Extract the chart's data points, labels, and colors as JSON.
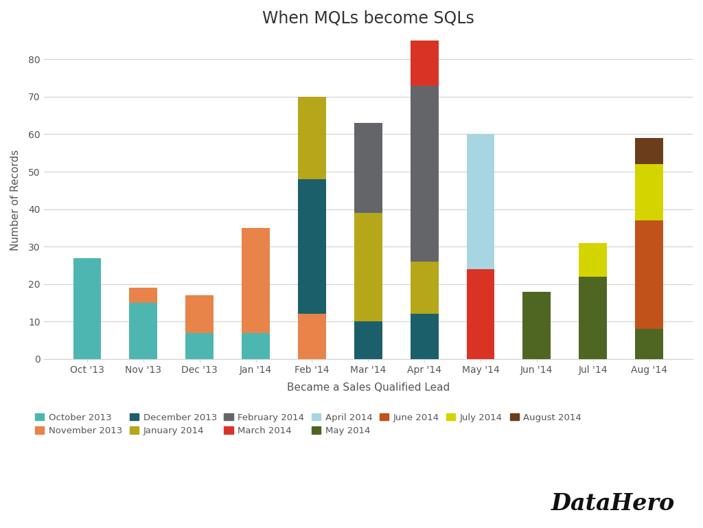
{
  "title": "When MQLs become SQLs",
  "xlabel": "Became a Sales Qualified Lead",
  "ylabel": "Number of Records",
  "background_color": "#ffffff",
  "categories": [
    "Oct '13",
    "Nov '13",
    "Dec '13",
    "Jan '14",
    "Feb '14",
    "Mar '14",
    "Apr '14",
    "May '14",
    "Jun '14",
    "Jul '14",
    "Aug '14"
  ],
  "series": [
    {
      "name": "October 2013",
      "color": "#4db6b0",
      "values": [
        27,
        15,
        7,
        7,
        0,
        0,
        0,
        0,
        0,
        0,
        0
      ]
    },
    {
      "name": "November 2013",
      "color": "#e8834a",
      "values": [
        0,
        4,
        10,
        28,
        12,
        0,
        0,
        0,
        0,
        0,
        0
      ]
    },
    {
      "name": "December 2013",
      "color": "#1b5f6b",
      "values": [
        0,
        0,
        0,
        0,
        36,
        10,
        12,
        0,
        0,
        0,
        0
      ]
    },
    {
      "name": "January 2014",
      "color": "#b5a61a",
      "values": [
        0,
        0,
        0,
        0,
        22,
        29,
        14,
        0,
        0,
        0,
        0
      ]
    },
    {
      "name": "February 2014",
      "color": "#636569",
      "values": [
        0,
        0,
        0,
        0,
        0,
        24,
        47,
        0,
        0,
        0,
        0
      ]
    },
    {
      "name": "March 2014",
      "color": "#d93326",
      "values": [
        0,
        0,
        0,
        0,
        0,
        0,
        15,
        24,
        0,
        0,
        0
      ]
    },
    {
      "name": "April 2014",
      "color": "#a8d5e2",
      "values": [
        0,
        0,
        0,
        0,
        0,
        0,
        0,
        36,
        0,
        0,
        0
      ]
    },
    {
      "name": "May 2014",
      "color": "#4e6622",
      "values": [
        0,
        0,
        0,
        0,
        0,
        0,
        0,
        0,
        18,
        22,
        8
      ]
    },
    {
      "name": "June 2014",
      "color": "#c0521a",
      "values": [
        0,
        0,
        0,
        0,
        0,
        0,
        0,
        0,
        0,
        0,
        29
      ]
    },
    {
      "name": "July 2014",
      "color": "#d4d400",
      "values": [
        0,
        0,
        0,
        0,
        0,
        0,
        0,
        0,
        0,
        9,
        15
      ]
    },
    {
      "name": "August 2014",
      "color": "#6b3d1a",
      "values": [
        0,
        0,
        0,
        0,
        0,
        0,
        0,
        0,
        0,
        0,
        7
      ]
    }
  ],
  "ylim": [
    0,
    85
  ],
  "yticks": [
    0,
    10,
    20,
    30,
    40,
    50,
    60,
    70,
    80
  ],
  "title_fontsize": 17,
  "axis_label_fontsize": 11,
  "tick_fontsize": 10,
  "legend_fontsize": 9.5,
  "bar_width": 0.5,
  "datahero_text": "DataHero",
  "grid_color": "#d0d0d0"
}
